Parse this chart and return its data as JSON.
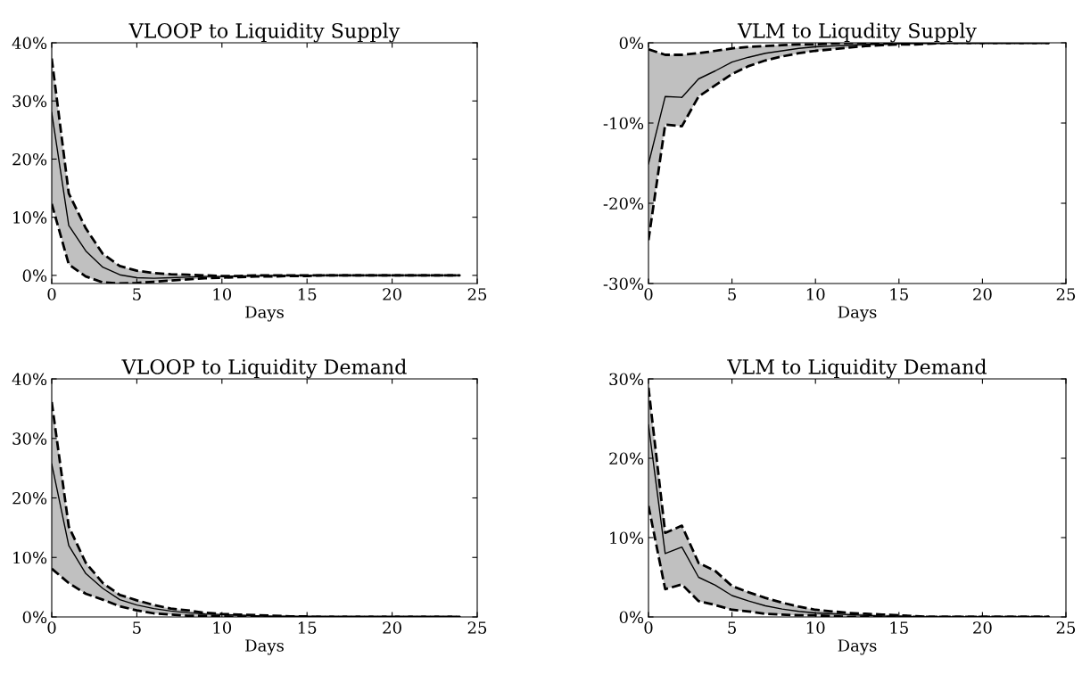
{
  "chart_data": [
    {
      "type": "line",
      "title": "VLOOP to Liquidity Supply",
      "xlabel": "Days",
      "x": [
        0,
        1,
        2,
        3,
        4,
        5,
        6,
        7,
        8,
        9,
        10,
        11,
        12,
        13,
        14,
        15,
        16,
        17,
        18,
        19,
        20,
        21,
        22,
        23,
        24
      ],
      "xlim": [
        0,
        25
      ],
      "xticks": [
        0,
        5,
        10,
        15,
        20,
        25
      ],
      "ylim": [
        -1.4,
        40
      ],
      "yticks": [
        {
          "value": 0,
          "label": "0%"
        },
        {
          "value": 10,
          "label": "10%"
        },
        {
          "value": 20,
          "label": "20%"
        },
        {
          "value": 30,
          "label": "30%"
        },
        {
          "value": 40,
          "label": "40%"
        }
      ],
      "grid": false,
      "line_style": "solid",
      "series": [
        {
          "color": "#000000",
          "values": [
            28.0,
            8.6,
            4.2,
            1.4,
            0.1,
            -0.4,
            -0.5,
            -0.4,
            -0.3,
            -0.2,
            -0.2,
            -0.1,
            -0.1,
            0,
            0,
            0,
            0,
            0,
            0,
            0,
            0,
            0,
            0,
            0,
            0
          ],
          "upper": [
            37.3,
            14.1,
            8.1,
            3.7,
            1.6,
            0.8,
            0.4,
            0.2,
            0.1,
            0,
            -0.1,
            -0.1,
            0,
            0,
            0,
            0,
            0,
            0,
            0,
            0,
            0,
            0,
            0,
            0,
            0
          ],
          "lower": [
            12.3,
            1.9,
            -0.2,
            -1.2,
            -1.4,
            -1.3,
            -1.1,
            -0.9,
            -0.7,
            -0.5,
            -0.4,
            -0.3,
            -0.2,
            -0.2,
            -0.1,
            -0.1,
            0,
            0,
            0,
            0,
            0,
            0,
            0,
            0,
            0
          ]
        },
        {
          "color": "#000000",
          "line_style": "dashed",
          "values": [
            37.3,
            14.1,
            8.1,
            3.7,
            1.6,
            0.8,
            0.4,
            0.2,
            0.1,
            0,
            -0.1,
            -0.1,
            0,
            0,
            0,
            0,
            0,
            0,
            0,
            0,
            0,
            0,
            0,
            0,
            0
          ]
        },
        {
          "color": "#000000",
          "line_style": "dashed",
          "values": [
            12.3,
            1.9,
            -0.2,
            -1.2,
            -1.4,
            -1.3,
            -1.1,
            -0.9,
            -0.7,
            -0.5,
            -0.4,
            -0.3,
            -0.2,
            -0.2,
            -0.1,
            -0.1,
            0,
            0,
            0,
            0,
            0,
            0,
            0,
            0,
            0
          ]
        }
      ]
    },
    {
      "type": "line",
      "title": "VLM to Liqudity Supply",
      "xlabel": "Days",
      "x": [
        0,
        1,
        2,
        3,
        4,
        5,
        6,
        7,
        8,
        9,
        10,
        11,
        12,
        13,
        14,
        15,
        16,
        17,
        18,
        19,
        20,
        21,
        22,
        23,
        24
      ],
      "xlim": [
        0,
        25
      ],
      "xticks": [
        0,
        5,
        10,
        15,
        20,
        25
      ],
      "ylim": [
        -30,
        0
      ],
      "yticks": [
        {
          "value": -30,
          "label": "-30%"
        },
        {
          "value": -20,
          "label": "-20%"
        },
        {
          "value": -10,
          "label": "-10%"
        },
        {
          "value": 0,
          "label": "0%"
        }
      ],
      "grid": false,
      "line_style": "solid",
      "series": [
        {
          "color": "#000000",
          "values": [
            -15.1,
            -6.7,
            -6.8,
            -4.5,
            -3.5,
            -2.4,
            -1.8,
            -1.3,
            -1.0,
            -0.7,
            -0.5,
            -0.4,
            -0.3,
            -0.2,
            -0.2,
            -0.1,
            0,
            0,
            0,
            0,
            0,
            0,
            0,
            0,
            0
          ],
          "upper": [
            -0.8,
            -1.5,
            -1.5,
            -1.3,
            -1.0,
            -0.7,
            -0.5,
            -0.4,
            -0.3,
            -0.2,
            -0.2,
            -0.1,
            0,
            0,
            0,
            0,
            0,
            0,
            0,
            0,
            0,
            0,
            0,
            0,
            0
          ],
          "lower": [
            -24.6,
            -10.2,
            -10.4,
            -6.7,
            -5.3,
            -3.9,
            -2.9,
            -2.2,
            -1.7,
            -1.3,
            -1.0,
            -0.8,
            -0.6,
            -0.4,
            -0.3,
            -0.2,
            -0.2,
            -0.1,
            0,
            0,
            0,
            0,
            0,
            0,
            0
          ]
        },
        {
          "color": "#000000",
          "line_style": "dashed",
          "values": [
            -0.8,
            -1.5,
            -1.5,
            -1.3,
            -1.0,
            -0.7,
            -0.5,
            -0.4,
            -0.3,
            -0.2,
            -0.2,
            -0.1,
            0,
            0,
            0,
            0,
            0,
            0,
            0,
            0,
            0,
            0,
            0,
            0,
            0
          ]
        },
        {
          "color": "#000000",
          "line_style": "dashed",
          "values": [
            -24.6,
            -10.2,
            -10.4,
            -6.7,
            -5.3,
            -3.9,
            -2.9,
            -2.2,
            -1.7,
            -1.3,
            -1.0,
            -0.8,
            -0.6,
            -0.4,
            -0.3,
            -0.2,
            -0.2,
            -0.1,
            0,
            0,
            0,
            0,
            0,
            0,
            0
          ]
        }
      ]
    },
    {
      "type": "line",
      "title": "VLOOP to Liquidity Demand",
      "xlabel": "Days",
      "x": [
        0,
        1,
        2,
        3,
        4,
        5,
        6,
        7,
        8,
        9,
        10,
        11,
        12,
        13,
        14,
        15,
        16,
        17,
        18,
        19,
        20,
        21,
        22,
        23,
        24
      ],
      "xlim": [
        0,
        25
      ],
      "xticks": [
        0,
        5,
        10,
        15,
        20,
        25
      ],
      "ylim": [
        0,
        40
      ],
      "yticks": [
        {
          "value": 0,
          "label": "0%"
        },
        {
          "value": 10,
          "label": "10%"
        },
        {
          "value": 20,
          "label": "20%"
        },
        {
          "value": 30,
          "label": "30%"
        },
        {
          "value": 40,
          "label": "40%"
        }
      ],
      "grid": false,
      "line_style": "solid",
      "series": [
        {
          "color": "#000000",
          "values": [
            25.7,
            12.0,
            7.3,
            4.8,
            2.9,
            2.0,
            1.4,
            1.0,
            0.7,
            0.5,
            0.4,
            0.3,
            0.2,
            0.1,
            0.1,
            0,
            0,
            0,
            0,
            0,
            0,
            0,
            0,
            0,
            0
          ],
          "upper": [
            36.1,
            15.2,
            9.1,
            5.7,
            3.7,
            2.8,
            2.0,
            1.4,
            1.1,
            0.7,
            0.5,
            0.4,
            0.3,
            0.2,
            0.1,
            0.1,
            0,
            0,
            0,
            0,
            0,
            0,
            0,
            0,
            0
          ],
          "lower": [
            8.1,
            5.7,
            3.9,
            2.9,
            1.8,
            1.1,
            0.6,
            0.4,
            0.2,
            0.2,
            0.1,
            0,
            0,
            0,
            0,
            0,
            0,
            0,
            0,
            0,
            0,
            0,
            0,
            0,
            0
          ]
        },
        {
          "color": "#000000",
          "line_style": "dashed",
          "values": [
            36.1,
            15.2,
            9.1,
            5.7,
            3.7,
            2.8,
            2.0,
            1.4,
            1.1,
            0.7,
            0.5,
            0.4,
            0.3,
            0.2,
            0.1,
            0.1,
            0,
            0,
            0,
            0,
            0,
            0,
            0,
            0,
            0
          ]
        },
        {
          "color": "#000000",
          "line_style": "dashed",
          "values": [
            8.1,
            5.7,
            3.9,
            2.9,
            1.8,
            1.1,
            0.6,
            0.4,
            0.2,
            0.2,
            0.1,
            0,
            0,
            0,
            0,
            0,
            0,
            0,
            0,
            0,
            0,
            0,
            0,
            0,
            0
          ]
        }
      ]
    },
    {
      "type": "line",
      "title": "VLM to Liquidity Demand",
      "xlabel": "Days",
      "x": [
        0,
        1,
        2,
        3,
        4,
        5,
        6,
        7,
        8,
        9,
        10,
        11,
        12,
        13,
        14,
        15,
        16,
        17,
        18,
        19,
        20,
        21,
        22,
        23,
        24
      ],
      "xlim": [
        0,
        25
      ],
      "xticks": [
        0,
        5,
        10,
        15,
        20,
        25
      ],
      "ylim": [
        0,
        30
      ],
      "yticks": [
        {
          "value": 0,
          "label": "0%"
        },
        {
          "value": 10,
          "label": "10%"
        },
        {
          "value": 20,
          "label": "20%"
        },
        {
          "value": 30,
          "label": "30%"
        }
      ],
      "grid": false,
      "line_style": "solid",
      "series": [
        {
          "color": "#000000",
          "values": [
            24.2,
            8.0,
            8.8,
            5.0,
            4.0,
            2.7,
            2.0,
            1.4,
            1.0,
            0.7,
            0.5,
            0.4,
            0.3,
            0.2,
            0.1,
            0.1,
            0,
            0,
            0,
            0,
            0,
            0,
            0,
            0,
            0
          ],
          "upper": [
            28.9,
            10.6,
            11.5,
            6.8,
            5.8,
            3.9,
            3.1,
            2.4,
            1.8,
            1.3,
            0.9,
            0.7,
            0.5,
            0.4,
            0.3,
            0.2,
            0.1,
            0,
            0,
            0,
            0,
            0,
            0,
            0,
            0
          ],
          "lower": [
            14.0,
            3.5,
            4.1,
            2.0,
            1.5,
            0.9,
            0.7,
            0.4,
            0.3,
            0.2,
            0.2,
            0.1,
            0,
            0,
            0,
            0,
            0,
            0,
            0,
            0,
            0,
            0,
            0,
            0,
            0
          ]
        },
        {
          "color": "#000000",
          "line_style": "dashed",
          "values": [
            28.9,
            10.6,
            11.5,
            6.8,
            5.8,
            3.9,
            3.1,
            2.4,
            1.8,
            1.3,
            0.9,
            0.7,
            0.5,
            0.4,
            0.3,
            0.2,
            0.1,
            0,
            0,
            0,
            0,
            0,
            0,
            0,
            0
          ]
        },
        {
          "color": "#000000",
          "line_style": "dashed",
          "values": [
            14.0,
            3.5,
            4.1,
            2.0,
            1.5,
            0.9,
            0.7,
            0.4,
            0.3,
            0.2,
            0.2,
            0.1,
            0,
            0,
            0,
            0,
            0,
            0,
            0,
            0,
            0,
            0,
            0,
            0,
            0
          ]
        }
      ]
    }
  ]
}
